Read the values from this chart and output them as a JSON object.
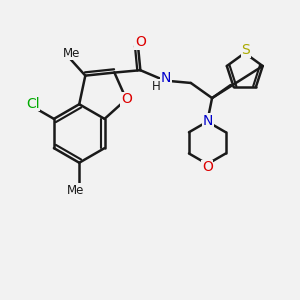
{
  "bg_color": "#f2f2f2",
  "bond_color": "#1a1a1a",
  "bond_width": 1.8,
  "atom_colors": {
    "O": "#dd0000",
    "N": "#0000cc",
    "S": "#aaaa00",
    "Cl": "#00aa00",
    "C": "#1a1a1a",
    "H": "#1a1a1a"
  },
  "font_size": 10,
  "small_font": 8.5
}
